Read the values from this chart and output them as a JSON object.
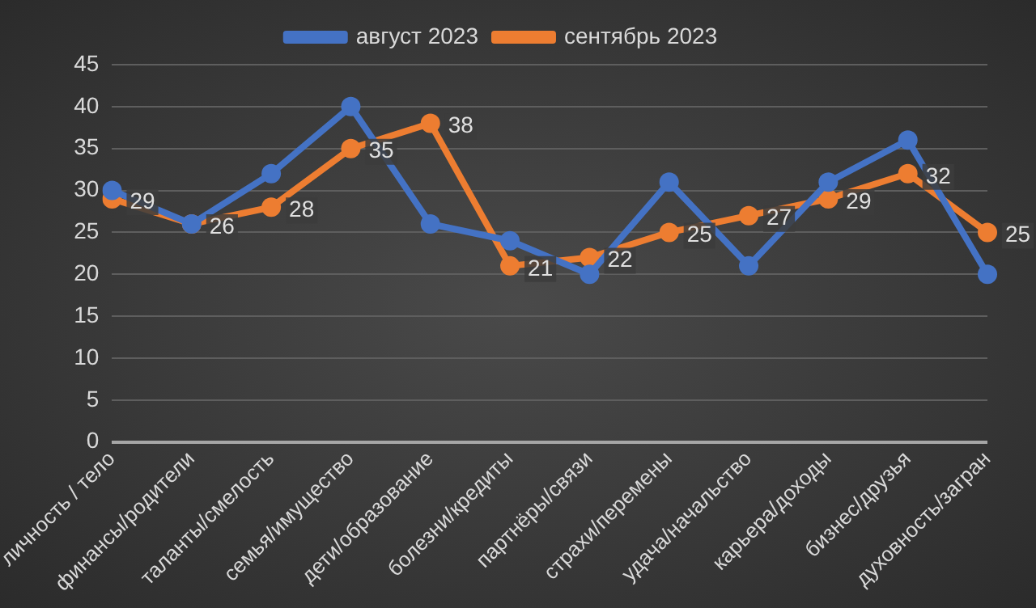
{
  "chart_data": {
    "type": "line",
    "categories": [
      "личность / тело",
      "финансы/родители",
      "таланты/смелость",
      "семья/имущество",
      "дети/образование",
      "болезни/кредиты",
      "партнёры/связи",
      "страхи/перемены",
      "удача/начальство",
      "карьера/доходы",
      "бизнес/друзья",
      "духовность/загран"
    ],
    "series": [
      {
        "name": "август 2023",
        "color": "#4472c4",
        "values": [
          30,
          26,
          32,
          40,
          26,
          24,
          20,
          31,
          21,
          31,
          36,
          20
        ]
      },
      {
        "name": "сентябрь 2023",
        "color": "#ed7d31",
        "values": [
          29,
          26,
          28,
          35,
          38,
          21,
          22,
          25,
          27,
          29,
          32,
          25
        ],
        "value_labels": [
          "29",
          "26",
          "28",
          "35",
          "38",
          "21",
          "22",
          "25",
          "27",
          "29",
          "32",
          "25"
        ]
      }
    ],
    "ylim": [
      0,
      45
    ],
    "yticks": [
      0,
      5,
      10,
      15,
      20,
      25,
      30,
      35,
      40,
      45
    ],
    "grid": "y",
    "legend": "top",
    "marker": "circle",
    "line_style": "solid"
  }
}
